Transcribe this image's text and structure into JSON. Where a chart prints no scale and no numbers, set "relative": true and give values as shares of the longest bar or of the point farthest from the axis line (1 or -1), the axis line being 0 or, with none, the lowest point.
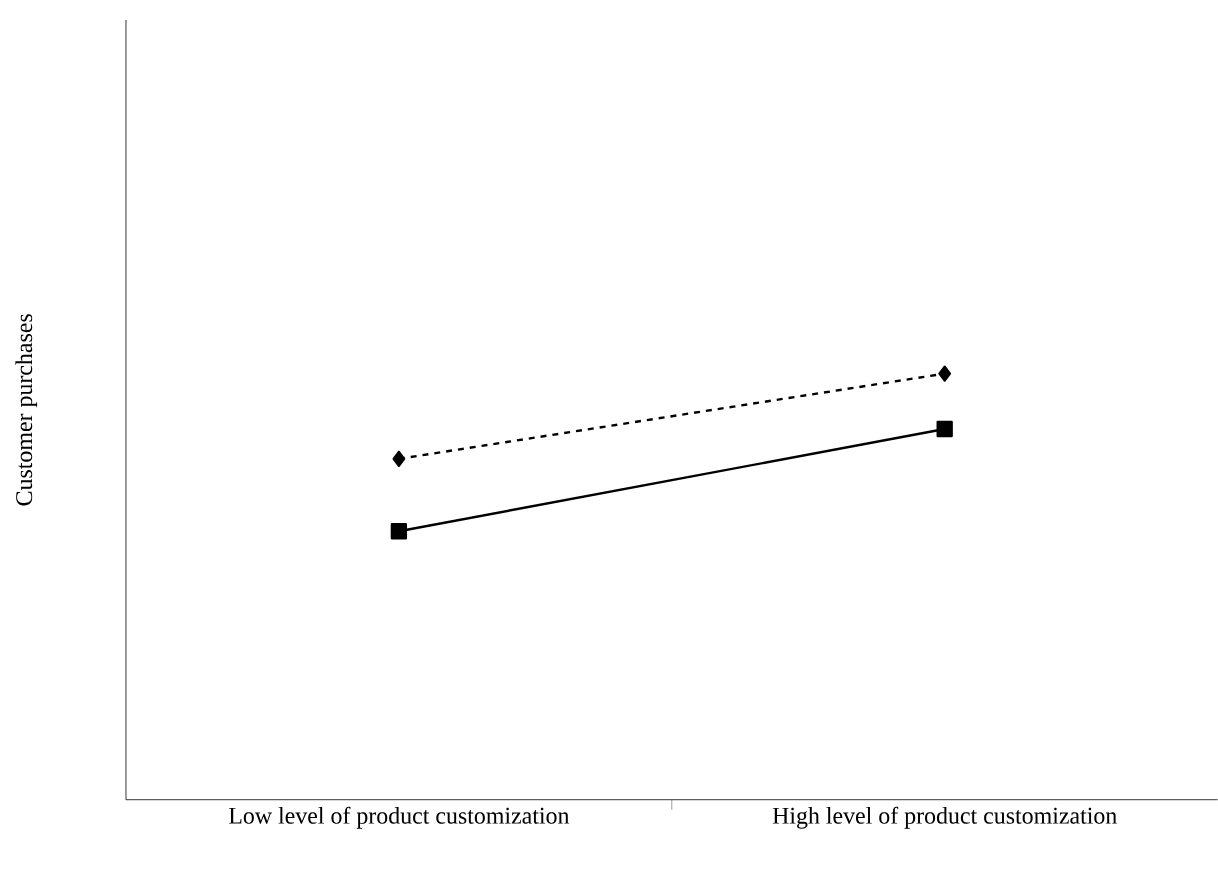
{
  "chart_data": {
    "type": "line",
    "relative": true,
    "ylabel": "Customer purchases",
    "categories": [
      "Low level of product customization",
      "High level of product customization"
    ],
    "series": [
      {
        "color": "#000000",
        "values": [
          0.8,
          1.0
        ],
        "marker": "diamond",
        "line_style": "dashed"
      },
      {
        "color": "#000000",
        "values": [
          0.63,
          0.87
        ],
        "marker": "square",
        "line_style": "solid"
      }
    ]
  }
}
